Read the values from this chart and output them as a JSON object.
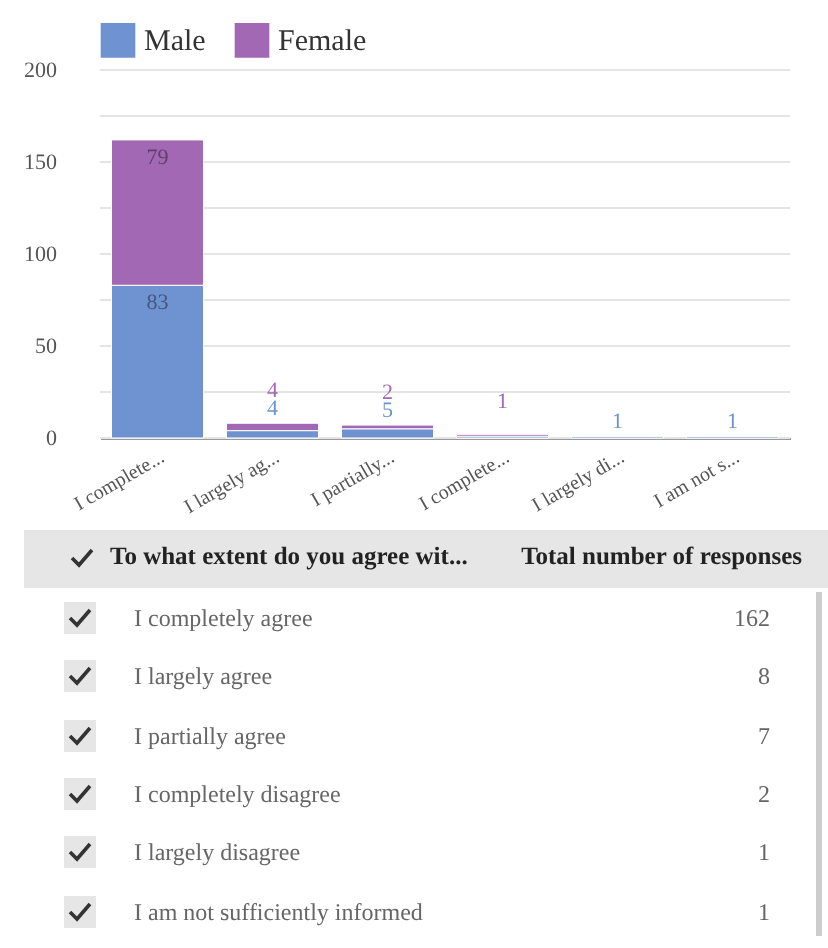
{
  "chart_data": {
    "type": "bar",
    "stacked": true,
    "legend": "top",
    "grid": true,
    "categories": [
      "I complete...",
      "I largely ag...",
      "I partially...",
      "I complete...",
      "I largely di...",
      "I am not s..."
    ],
    "series": [
      {
        "name": "Male",
        "color": "#6f93d0",
        "values": [
          83,
          4,
          5,
          1,
          1,
          1
        ],
        "value_labels": [
          "83",
          "4",
          "5",
          null,
          "1",
          "1"
        ]
      },
      {
        "name": "Female",
        "color": "#a268b4",
        "values": [
          79,
          4,
          2,
          1,
          0,
          0
        ],
        "value_labels": [
          "79",
          "4",
          "2",
          "1",
          null,
          null
        ]
      }
    ],
    "ylim": [
      0,
      200
    ],
    "yticks": [
      0,
      {
        "value": 25,
        "label": null
      },
      50,
      {
        "value": 75,
        "label": null
      },
      100,
      {
        "value": 125,
        "label": null
      },
      150,
      {
        "value": 175,
        "label": null
      },
      200
    ],
    "annotations": [
      "To what extent do you agree wit...",
      "Total number of responses",
      "I completely agree",
      "162",
      "I largely agree",
      "8",
      "I partially agree",
      "7",
      "I completely disagree",
      "2",
      "I largely disagree",
      "1",
      "I am not sufficiently informed",
      "1"
    ]
  }
}
